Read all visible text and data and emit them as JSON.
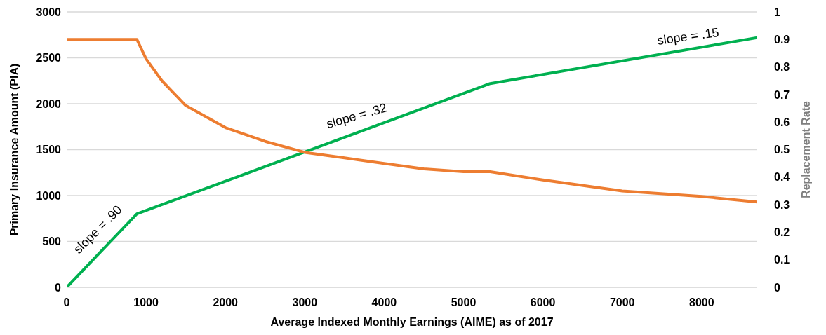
{
  "chart_data": {
    "type": "line",
    "xlabel": "Average Indexed Monthly Earnings (AIME) as of 2017",
    "ylabel": "Primary Insurance Amount (PIA)",
    "y2label": "Replacement Rate",
    "xlim": [
      0,
      8700
    ],
    "xticks": [
      0,
      1000,
      2000,
      3000,
      4000,
      5000,
      6000,
      7000,
      8000
    ],
    "ylim": [
      0,
      3000
    ],
    "yticks": [
      0,
      500,
      1000,
      1500,
      2000,
      2500,
      3000
    ],
    "y2lim": [
      0,
      1
    ],
    "y2ticks": [
      0,
      0.1,
      0.2,
      0.3,
      0.4,
      0.5,
      0.6,
      0.7,
      0.8,
      0.9,
      1
    ],
    "grid": "y",
    "legend": false,
    "marker": "none",
    "line_style": "solid",
    "series": [
      {
        "color": "#00b050",
        "x": [
          0,
          885,
          5336,
          8700
        ],
        "values": [
          0,
          800,
          2220,
          2720
        ]
      },
      {
        "color": "#ed7d31",
        "axis": "y2",
        "x": [
          0,
          885,
          1000,
          1200,
          1500,
          2000,
          2500,
          3000,
          3500,
          4000,
          4500,
          5000,
          5336,
          6000,
          7000,
          8000,
          8700
        ],
        "values": [
          0.9,
          0.9,
          0.83,
          0.75,
          0.66,
          0.58,
          0.53,
          0.49,
          0.47,
          0.45,
          0.43,
          0.42,
          0.42,
          0.39,
          0.35,
          0.33,
          0.31
        ]
      }
    ],
    "annotations": [
      "slope = .90",
      "slope = .32",
      "slope = .15"
    ]
  }
}
